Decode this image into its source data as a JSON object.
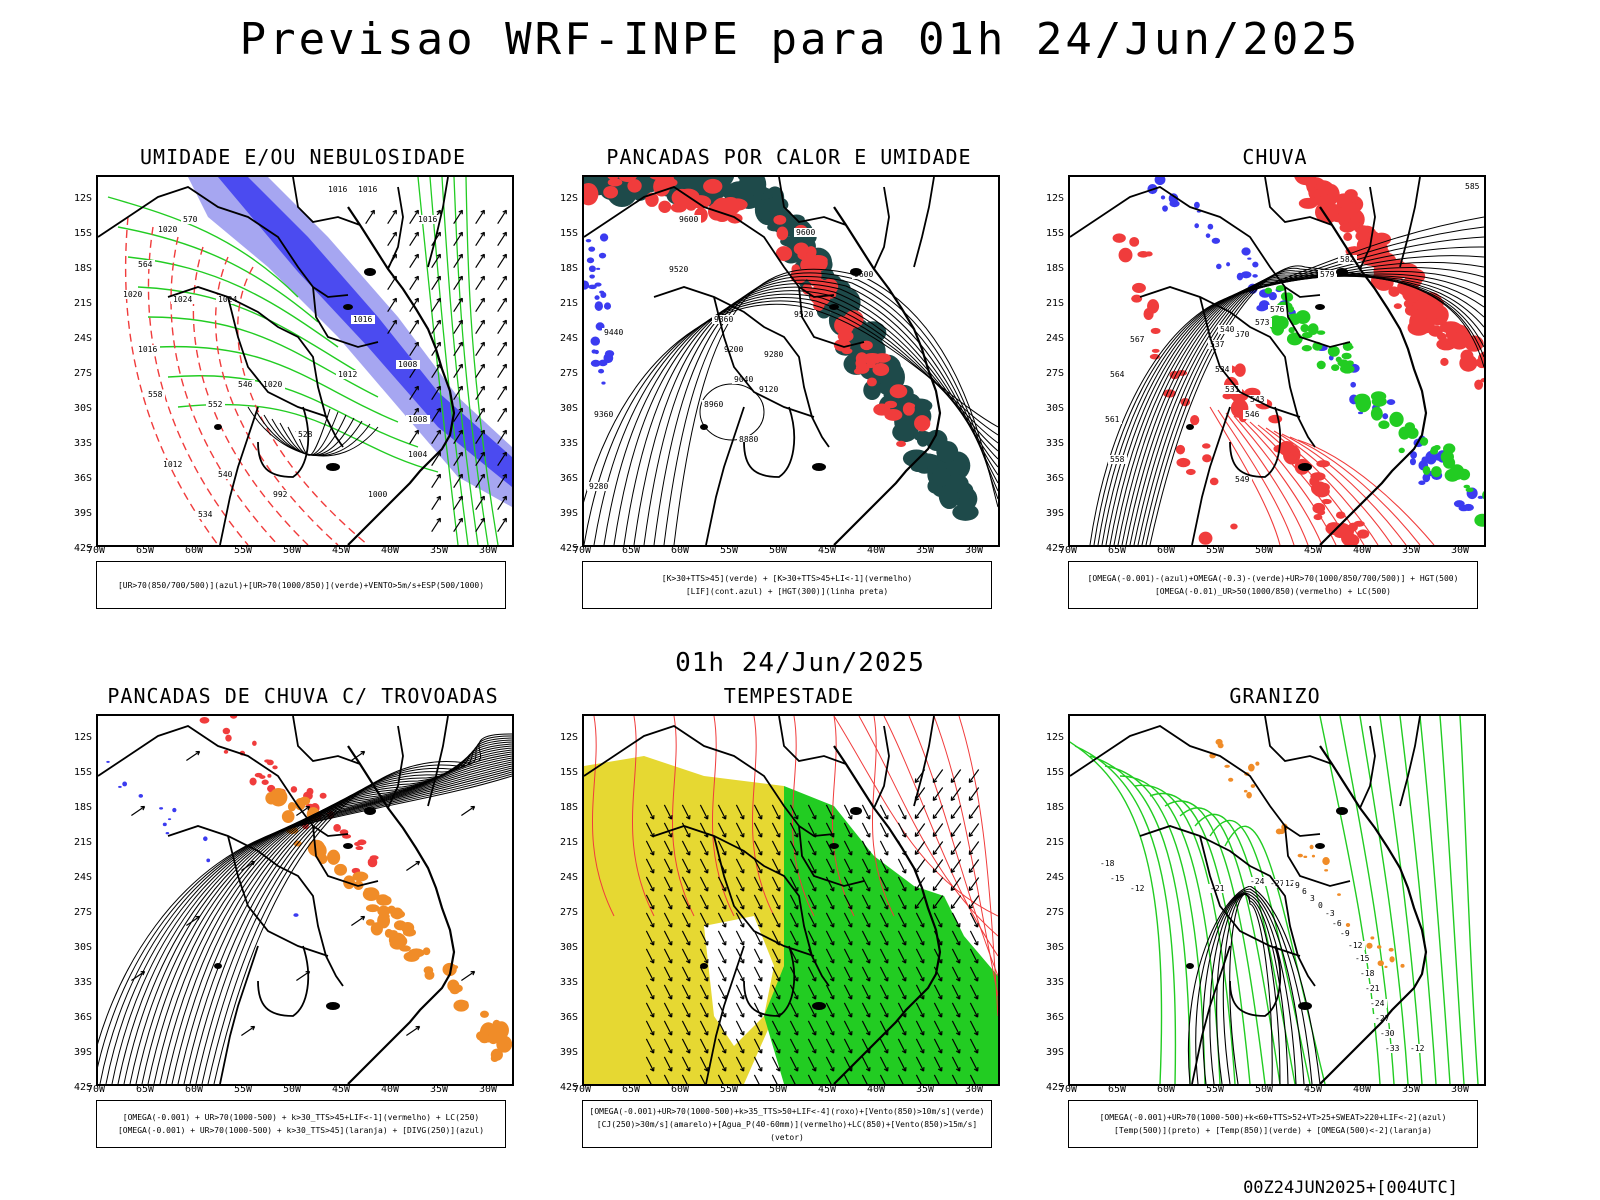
{
  "main_title": "Previsao WRF-INPE  para 01h 24/Jun/2025",
  "mid_title": "01h 24/Jun/2025",
  "footer": "00Z24JUN2025+[004UTC]",
  "lat_labels": [
    "12S",
    "15S",
    "18S",
    "21S",
    "24S",
    "27S",
    "30S",
    "33S",
    "36S",
    "39S",
    "42S"
  ],
  "lon_labels": [
    "70W",
    "65W",
    "60W",
    "55W",
    "50W",
    "45W",
    "40W",
    "35W",
    "30W"
  ],
  "panels": [
    {
      "title": "UMIDADE E/OU NEBULOSIDADE",
      "legend": [
        "[UR>70(850/700/500)](azul)+[UR>70(1000/850)](verde)+VENTO>5m/s+ESP(500/1000)"
      ],
      "contour_labels": [
        "1016",
        "1016",
        "1016",
        "1020",
        "1024",
        "1024",
        "1020",
        "1016",
        "1012",
        "1008",
        "1008",
        "1004",
        "1000",
        "992",
        "1012",
        "1016",
        "1020",
        "570",
        "564",
        "558",
        "552",
        "546",
        "540",
        "534",
        "528"
      ]
    },
    {
      "title": "PANCADAS POR CALOR E UMIDADE",
      "legend": [
        "[K>30+TTS>45](verde) + [K>30+TTS>45+LI<-1](vermelho)",
        "[LIF](cont.azul) + [HGT(300)](linha preta)"
      ],
      "contour_labels": [
        "9600",
        "9600",
        "9600",
        "9520",
        "9440",
        "9360",
        "9280",
        "9200",
        "9120",
        "9040",
        "8960",
        "8880",
        "9360",
        "9280",
        "9520"
      ]
    },
    {
      "title": "CHUVA",
      "legend": [
        "[OMEGA(-0.001)-(azul)+OMEGA(-0.3)-(verde)+UR>70(1000/850/700/500)] + HGT(500)",
        "[OMEGA(-0.01)_UR>50(1000/850)(vermelho) + LC(500)"
      ],
      "contour_labels": [
        "585",
        "582",
        "579",
        "576",
        "573",
        "570",
        "567",
        "564",
        "561",
        "558",
        "549",
        "546",
        "543",
        "540",
        "537",
        "534",
        "531"
      ]
    },
    {
      "title": "PANCADAS DE CHUVA C/ TROVOADAS",
      "legend": [
        "[OMEGA(-0.001) + UR>70(1000-500) + k>30_TTS>45+LIF<-1](vermelho) + LC(250)",
        "[OMEGA(-0.001) + UR>70(1000-500) + k>30_TTS>45](laranja) + [DIVG(250)](azul)"
      ],
      "contour_labels": []
    },
    {
      "title": "TEMPESTADE",
      "legend": [
        "[OMEGA(-0.001)+UR>70(1000-500)+k>35_TTS>50+LIF<-4](roxo)+[Vento(850)>10m/s](verde)",
        "[CJ(250)>30m/s](amarelo)+[Agua_P(40-60mm)](vermelho)+LC(850)+[Vento(850)>15m/s](vetor)"
      ],
      "contour_labels": []
    },
    {
      "title": "GRANIZO",
      "legend": [
        "[OMEGA(-0.001)+UR>70(1000-500)+k<60+TTS>52+VT>25+SWEAT>220+LIF<-2](azul)",
        "[Temp(500)](preto) + [Temp(850)](verde) + [OMEGA(500)<-2](laranja)"
      ],
      "contour_labels": [
        "-12",
        "-15",
        "-18",
        "-21",
        "-24",
        "-27",
        "12",
        "9",
        "6",
        "3",
        "0",
        "-3",
        "-6",
        "-9",
        "-12",
        "-15",
        "-18",
        "-21",
        "-24",
        "-27",
        "-30",
        "-33",
        "-12"
      ]
    }
  ],
  "colors": {
    "red": "#f03c3c",
    "green": "#22cc22",
    "blue": "#3b3bf0",
    "blue_light": "#9c9cf0",
    "dark_teal": "#1e4a4a",
    "orange": "#f08c28",
    "yellow": "#e6d832",
    "black": "#000000"
  }
}
